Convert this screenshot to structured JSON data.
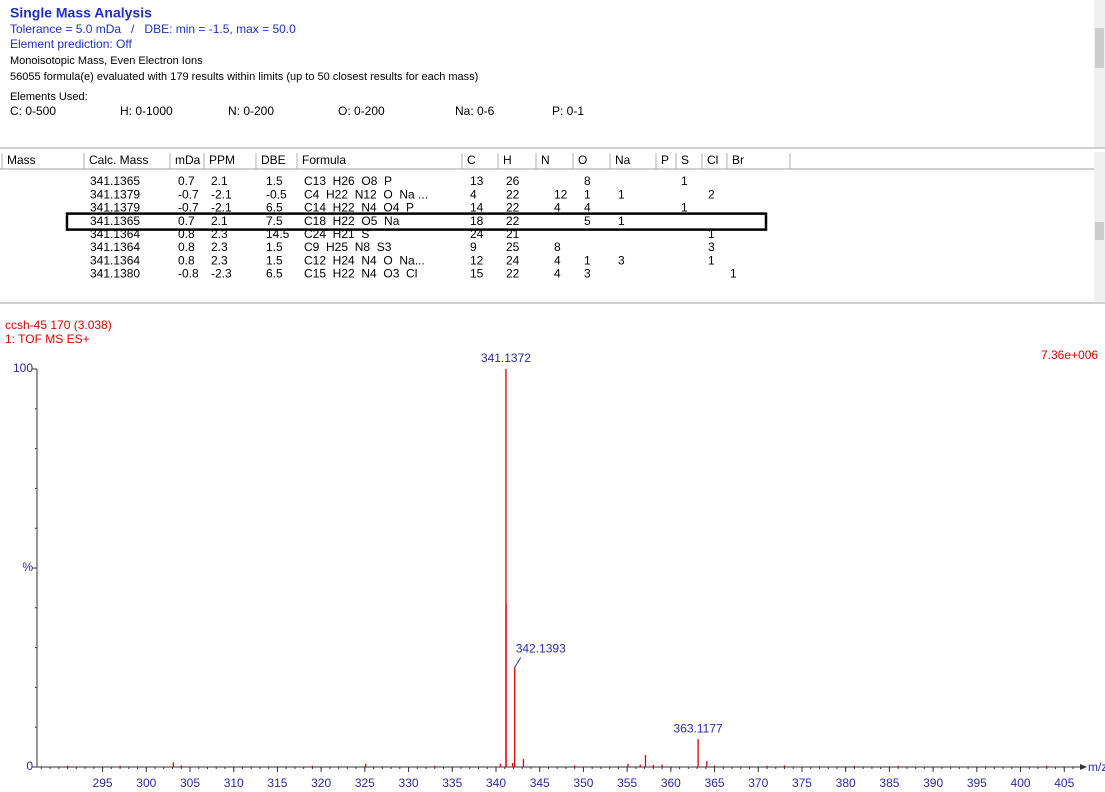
{
  "header": {
    "title": "Single Mass Analysis",
    "lines": [
      "Tolerance = 5.0 mDa   /   DBE: min = -1.5, max = 50.0",
      "Element prediction: Off",
      "Monoisotopic Mass, Even Electron Ions",
      "56055 formula(e) evaluated with 179 results within limits (up to 50 closest results for each mass)",
      "Elements Used:"
    ],
    "elements": [
      "C: 0-500",
      "H: 0-1000",
      "N: 0-200",
      "O: 0-200",
      "Na: 0-6",
      "P: 0-1"
    ]
  },
  "table": {
    "columns": [
      "Mass",
      "Calc. Mass",
      "mDa",
      "PPM",
      "DBE",
      "Formula",
      "C",
      "H",
      "N",
      "O",
      "Na",
      "P",
      "S",
      "Cl",
      "Br"
    ],
    "rows": [
      [
        null,
        "341.1365",
        "0.7",
        "2.1",
        "1.5",
        "C13  H26  O8  P",
        "13",
        "26",
        null,
        "8",
        null,
        "1",
        null,
        null,
        null
      ],
      [
        null,
        "341.1379",
        "-0.7",
        "-2.1",
        "-0.5",
        "C4  H22  N12  O  Na ...",
        "4",
        "22",
        "12",
        "1",
        "1",
        null,
        "2",
        null,
        null
      ],
      [
        null,
        "341.1379",
        "-0.7",
        "-2.1",
        "6.5",
        "C14  H22  N4  O4  P",
        "14",
        "22",
        "4",
        "4",
        null,
        "1",
        null,
        null,
        null
      ],
      [
        null,
        "341.1365",
        "0.7",
        "2.1",
        "7.5",
        "C18  H22  O5  Na",
        "18",
        "22",
        null,
        "5",
        "1",
        null,
        null,
        null,
        null
      ],
      [
        null,
        "341.1364",
        "0.8",
        "2.3",
        "14.5",
        "C24  H21  S",
        "24",
        "21",
        null,
        null,
        null,
        null,
        "1",
        null,
        null
      ],
      [
        null,
        "341.1364",
        "0.8",
        "2.3",
        "1.5",
        "C9  H25  N8  S3",
        "9",
        "25",
        "8",
        null,
        null,
        null,
        "3",
        null,
        null
      ],
      [
        null,
        "341.1364",
        "0.8",
        "2.3",
        "1.5",
        "C12  H24  N4  O  Na...",
        "12",
        "24",
        "4",
        "1",
        "3",
        null,
        "1",
        null,
        null
      ],
      [
        null,
        "341.1380",
        "-0.8",
        "-2.3",
        "6.5",
        "C15  H22  N4  O3  Cl",
        "15",
        "22",
        "4",
        "3",
        null,
        null,
        null,
        "1",
        null
      ]
    ],
    "selected_row": 3
  },
  "chart_data": {
    "type": "bar",
    "sample": "ccsh-45 170 (3.038)",
    "function": "1: TOF MS ES+",
    "max_intensity": "7.36e+006",
    "x_label": "m/z",
    "color": "#e00000",
    "x": [
      291,
      297,
      303.1,
      304,
      319,
      325.1,
      333,
      340.5,
      341.1372,
      341.16,
      341.9,
      342.1393,
      343.14,
      349,
      355.1,
      356.5,
      357.1,
      358,
      359,
      363.1177,
      364.12,
      365,
      371,
      373,
      381,
      386,
      403
    ],
    "values": [
      0.3,
      0.3,
      1.2,
      0.4,
      0.3,
      0.8,
      0.3,
      0.8,
      100,
      41,
      1,
      25,
      2,
      0.4,
      0.8,
      0.6,
      3,
      0.5,
      0.6,
      7,
      1.5,
      0.4,
      0.3,
      0.4,
      0.3,
      0.3,
      0.3
    ],
    "peak_labels": [
      null,
      null,
      null,
      null,
      null,
      null,
      null,
      null,
      "341.1372",
      null,
      null,
      "342.1393",
      null,
      null,
      null,
      null,
      null,
      null,
      null,
      "363.1177",
      null,
      null,
      null,
      null,
      null,
      null,
      null
    ],
    "xlim": [
      287.5,
      406.8
    ],
    "xticks": [
      295,
      300,
      305,
      310,
      315,
      320,
      325,
      330,
      335,
      340,
      345,
      350,
      355,
      360,
      365,
      370,
      375,
      380,
      385,
      390,
      395,
      400,
      405
    ],
    "ylim": [
      0,
      100
    ],
    "yticks": [
      0,
      {
        "value": 50,
        "label": "%"
      },
      100
    ]
  }
}
